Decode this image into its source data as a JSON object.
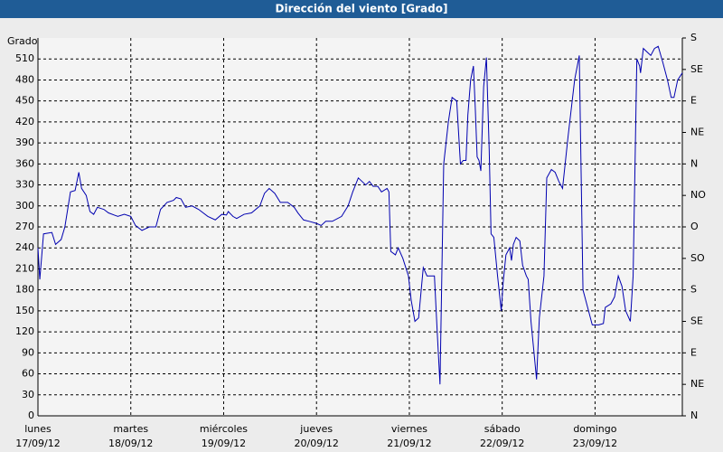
{
  "chart_data": {
    "type": "line",
    "title": "Dirección del viento [Grado]",
    "y_label": "Grado",
    "color": "#0000b0",
    "grid": true,
    "x": [
      0,
      0.02,
      0.06,
      0.15,
      0.19,
      0.25,
      0.29,
      0.35,
      0.4,
      0.44,
      0.47,
      0.52,
      0.56,
      0.6,
      0.64,
      0.71,
      0.76,
      0.86,
      0.93,
      1.0,
      1.05,
      1.12,
      1.2,
      1.27,
      1.32,
      1.39,
      1.46,
      1.49,
      1.54,
      1.59,
      1.66,
      1.73,
      1.83,
      1.91,
      1.98,
      2.03,
      2.05,
      2.1,
      2.14,
      2.22,
      2.3,
      2.39,
      2.44,
      2.49,
      2.55,
      2.61,
      2.69,
      2.76,
      2.8,
      2.86,
      2.92,
      3.0,
      3.05,
      3.1,
      3.17,
      3.27,
      3.34,
      3.39,
      3.45,
      3.49,
      3.53,
      3.57,
      3.61,
      3.66,
      3.7,
      3.76,
      3.78,
      3.8,
      3.85,
      3.88,
      3.93,
      3.99,
      4.02,
      4.06,
      4.1,
      4.15,
      4.19,
      4.23,
      4.27,
      4.3,
      4.33,
      4.37,
      4.42,
      4.46,
      4.51,
      4.55,
      4.58,
      4.61,
      4.63,
      4.66,
      4.69,
      4.71,
      4.73,
      4.75,
      4.77,
      4.8,
      4.83,
      4.86,
      4.88,
      4.91,
      4.95,
      4.99,
      5.01,
      5.04,
      5.08,
      5.1,
      5.12,
      5.15,
      5.19,
      5.22,
      5.26,
      5.28,
      5.31,
      5.35,
      5.37,
      5.4,
      5.45,
      5.48,
      5.53,
      5.57,
      5.61,
      5.65,
      5.71,
      5.78,
      5.83,
      5.87,
      5.92,
      5.97,
      6.04,
      6.09,
      6.11,
      6.17,
      6.21,
      6.25,
      6.29,
      6.33,
      6.38,
      6.41,
      6.45,
      6.48,
      6.49,
      6.52,
      6.56,
      6.6,
      6.64,
      6.68,
      6.73,
      6.78,
      6.82,
      6.85,
      6.89,
      6.94
    ],
    "values": [
      240,
      195,
      260,
      262,
      245,
      252,
      270,
      320,
      322,
      348,
      325,
      315,
      292,
      288,
      298,
      295,
      290,
      285,
      288,
      285,
      272,
      265,
      270,
      270,
      295,
      305,
      308,
      312,
      310,
      298,
      300,
      295,
      285,
      280,
      288,
      287,
      292,
      285,
      282,
      288,
      290,
      300,
      318,
      325,
      318,
      305,
      305,
      298,
      290,
      280,
      278,
      275,
      272,
      278,
      278,
      285,
      300,
      320,
      340,
      335,
      330,
      335,
      328,
      328,
      320,
      325,
      320,
      235,
      230,
      240,
      225,
      200,
      165,
      135,
      140,
      212,
      200,
      200,
      200,
      120,
      45,
      360,
      420,
      455,
      450,
      360,
      365,
      365,
      430,
      480,
      500,
      440,
      370,
      365,
      350,
      470,
      512,
      380,
      260,
      255,
      200,
      150,
      190,
      230,
      240,
      222,
      245,
      255,
      250,
      215,
      200,
      195,
      135,
      80,
      52,
      140,
      200,
      340,
      352,
      348,
      335,
      325,
      400,
      480,
      515,
      180,
      155,
      130,
      130,
      132,
      155,
      160,
      170,
      200,
      185,
      150,
      135,
      200,
      510,
      500,
      490,
      525,
      520,
      515,
      525,
      528,
      505,
      480,
      455,
      455,
      480,
      490
    ],
    "xlim": [
      0,
      6.94
    ],
    "xticks": [
      {
        "value": 0,
        "label": [
          "lunes",
          "17/09/12"
        ]
      },
      {
        "value": 1,
        "label": [
          "martes",
          "18/09/12"
        ]
      },
      {
        "value": 2,
        "label": [
          "miércoles",
          "19/09/12"
        ]
      },
      {
        "value": 3,
        "label": [
          "jueves",
          "20/09/12"
        ]
      },
      {
        "value": 4,
        "label": [
          "viernes",
          "21/09/12"
        ]
      },
      {
        "value": 5,
        "label": [
          "sábado",
          "22/09/12"
        ]
      },
      {
        "value": 6,
        "label": [
          "domingo",
          "23/09/12"
        ]
      }
    ],
    "ylim": [
      0,
      540
    ],
    "yticks": [
      0,
      30,
      60,
      90,
      120,
      150,
      180,
      210,
      240,
      270,
      300,
      330,
      360,
      390,
      420,
      450,
      480,
      510
    ],
    "y2lim": [
      0,
      540
    ],
    "y2ticks": [
      {
        "value": 0,
        "label": "N"
      },
      {
        "value": 45,
        "label": "NE"
      },
      {
        "value": 90,
        "label": "E"
      },
      {
        "value": 135,
        "label": "SE"
      },
      {
        "value": 180,
        "label": "S"
      },
      {
        "value": 225,
        "label": "SO"
      },
      {
        "value": 270,
        "label": "O"
      },
      {
        "value": 315,
        "label": "NO"
      },
      {
        "value": 360,
        "label": "N"
      },
      {
        "value": 405,
        "label": "NE"
      },
      {
        "value": 450,
        "label": "E"
      },
      {
        "value": 495,
        "label": "SE"
      },
      {
        "value": 540,
        "label": "S"
      }
    ]
  }
}
